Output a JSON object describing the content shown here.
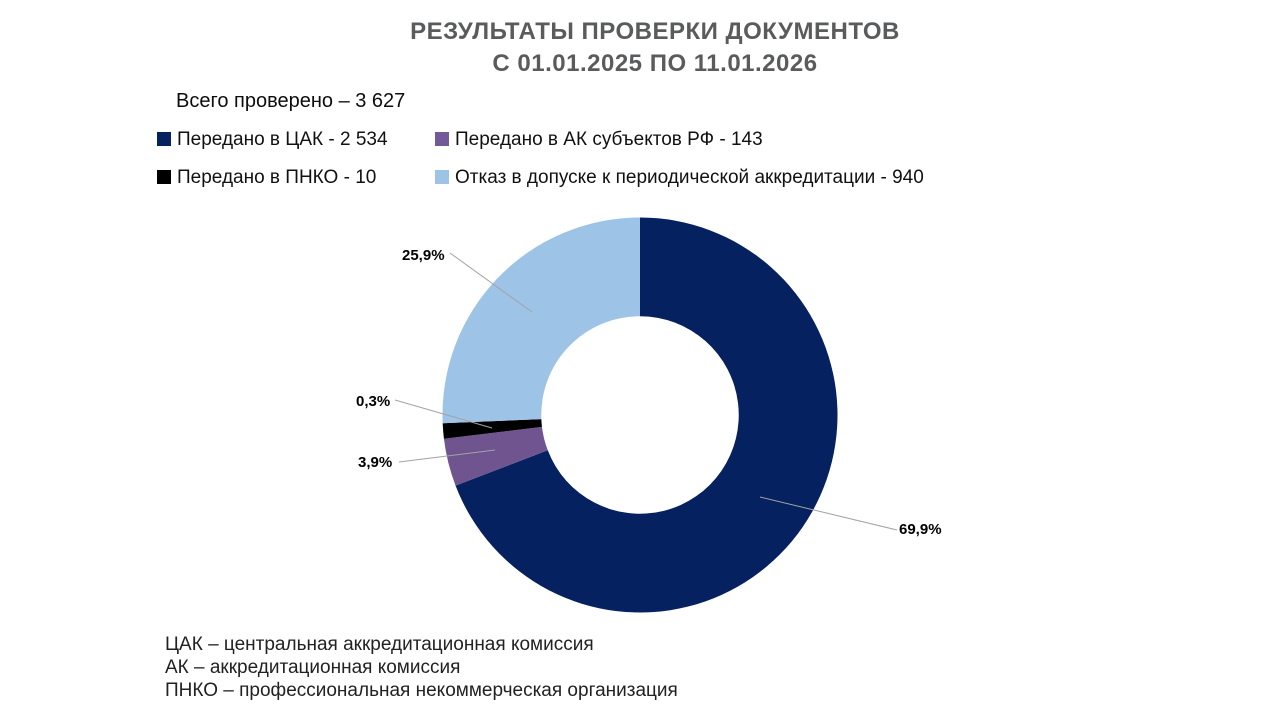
{
  "title": {
    "line1": "РЕЗУЛЬТАТЫ ПРОВЕРКИ ДОКУМЕНТОВ",
    "line2": "С 01.01.2025  ПО 11.01.2026"
  },
  "total_label": "Всего проверено – 3 627",
  "legend": {
    "items": [
      {
        "label": "Передано в ЦАК - 2 534",
        "color": "#06215f"
      },
      {
        "label": "Передано в АК субъектов РФ - 143",
        "color": "#73589a"
      },
      {
        "label": "Передано в ПНКО - 10",
        "color": "#000000"
      },
      {
        "label": "Отказ в допуске к периодической аккредитации - 940",
        "color": "#9dc3e6"
      }
    ]
  },
  "chart_data": {
    "type": "pie",
    "subtype": "donut",
    "title": "РЕЗУЛЬТАТЫ ПРОВЕРКИ ДОКУМЕНТОВ С 01.01.2025 ПО 11.01.2026",
    "total": 3627,
    "start_angle_deg": 0,
    "direction": "clockwise",
    "inner_radius_ratio": 0.5,
    "legend_position": "top-left",
    "slices": [
      {
        "label": "Передано в ЦАК",
        "value": 2534,
        "percent": 69.9,
        "percent_label": "69,9%",
        "color": "#06215f"
      },
      {
        "label": "Передано в АК субъектов РФ",
        "value": 143,
        "percent": 3.9,
        "percent_label": "3,9%",
        "color": "#6f5490"
      },
      {
        "label": "Передано в ПНКО",
        "value": 10,
        "percent": 0.3,
        "percent_label": "0,3%",
        "color": "#000000"
      },
      {
        "label": "Отказ в допуске к периодической аккредитации",
        "value": 940,
        "percent": 25.9,
        "percent_label": "25,9%",
        "color": "#9dc3e6"
      }
    ]
  },
  "footnotes": [
    "ЦАК – центральная аккредитационная комиссия",
    "АК – аккредитационная комиссия",
    "ПНКО – профессиональная некоммерческая организация"
  ]
}
